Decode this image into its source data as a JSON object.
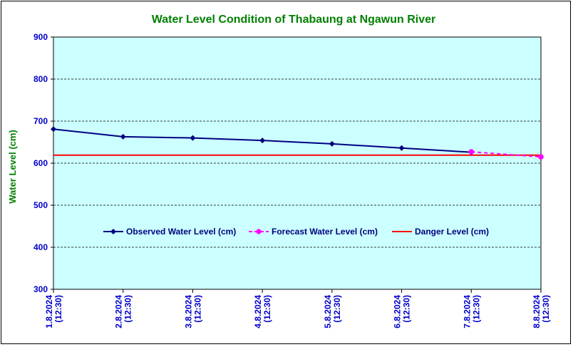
{
  "chart_data": {
    "type": "line",
    "title": "Water Level Condition of Thabaung at Ngawun River",
    "ylabel": "Water Level (cm)",
    "xlabel": "",
    "ylim": [
      300,
      900
    ],
    "yticks": [
      300,
      400,
      500,
      600,
      700,
      800,
      900
    ],
    "grid": true,
    "legend_position": "center",
    "plot_background": "#ccffff",
    "categories": [
      [
        "1.8.2024",
        "(12:30)"
      ],
      [
        "2.8.2024",
        "(12:30)"
      ],
      [
        "3.8.2024",
        "(12:30)"
      ],
      [
        "4.8.2024",
        "(12:30)"
      ],
      [
        "5.8.2024",
        "(12:30)"
      ],
      [
        "6.8.2024",
        "(12:30)"
      ],
      [
        "7.8.2024",
        "(12:30)"
      ],
      [
        "8.8.2024",
        "(12:30)"
      ]
    ],
    "series": [
      {
        "name": "Observed Water Level (cm)",
        "color": "#000080",
        "marker": "diamond",
        "dash": "solid",
        "values": [
          681,
          663,
          660,
          654,
          646,
          636,
          626,
          null
        ]
      },
      {
        "name": "Forecast Water Level (cm)",
        "color": "#ff00ff",
        "marker": "circle",
        "dash": "dashed",
        "values": [
          null,
          null,
          null,
          null,
          null,
          null,
          627,
          615
        ]
      },
      {
        "name": "Danger Level (cm)",
        "color": "#ff0000",
        "marker": "none",
        "dash": "solid",
        "values": [
          619,
          619,
          619,
          619,
          619,
          619,
          619,
          619
        ]
      }
    ]
  }
}
